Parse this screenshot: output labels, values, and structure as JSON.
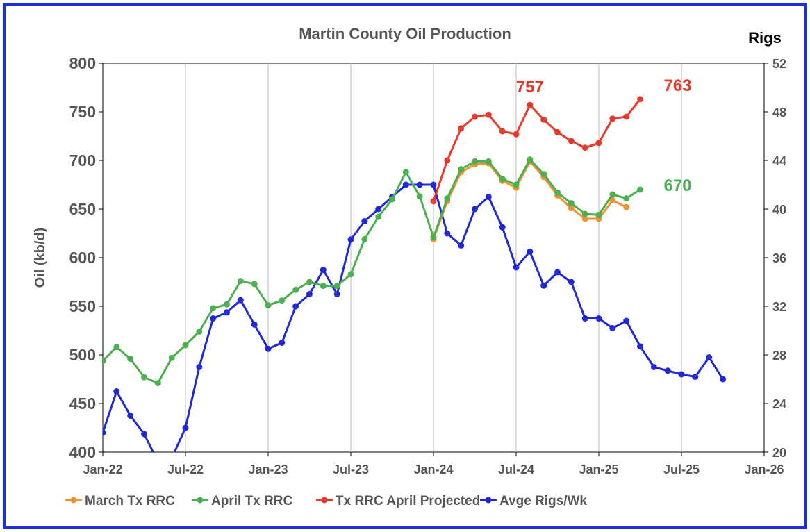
{
  "chart_data": {
    "type": "line",
    "title": "Martin County Oil Production",
    "ylabel": "Oil (kb/d)",
    "y2label": "Rigs",
    "ylim": [
      400,
      800
    ],
    "y2lim": [
      20,
      52
    ],
    "yticks": [
      400,
      450,
      500,
      550,
      600,
      650,
      700,
      750,
      800
    ],
    "y2ticks": [
      20,
      24,
      28,
      32,
      36,
      40,
      44,
      48,
      52
    ],
    "xlim": [
      "2022-01",
      "2026-01"
    ],
    "xticks": [
      {
        "date": "2022-01",
        "label": "Jan-22"
      },
      {
        "date": "2022-07",
        "label": "Jul-22"
      },
      {
        "date": "2023-01",
        "label": "Jan-23"
      },
      {
        "date": "2023-07",
        "label": "Jul-23"
      },
      {
        "date": "2024-01",
        "label": "Jan-24"
      },
      {
        "date": "2024-07",
        "label": "Jul-24"
      },
      {
        "date": "2025-01",
        "label": "Jan-25"
      },
      {
        "date": "2025-07",
        "label": "Jul-25"
      },
      {
        "date": "2026-01",
        "label": "Jan-26"
      }
    ],
    "grid": "vertical",
    "legend_position": "bottom",
    "series": [
      {
        "name": "March Tx RRC",
        "color": "#f0922f",
        "axis": "left",
        "x": [
          "2024-01",
          "2024-02",
          "2024-03",
          "2024-04",
          "2024-05",
          "2024-06",
          "2024-07",
          "2024-08",
          "2024-09",
          "2024-10",
          "2024-11",
          "2024-12",
          "2025-01",
          "2025-02",
          "2025-03"
        ],
        "values": [
          619,
          658,
          688,
          696,
          697,
          679,
          672,
          699,
          683,
          664,
          651,
          640,
          640,
          659,
          652
        ]
      },
      {
        "name": "April Tx RRC",
        "color": "#4caf50",
        "axis": "left",
        "x": [
          "2022-01",
          "2022-02",
          "2022-03",
          "2022-04",
          "2022-05",
          "2022-06",
          "2022-07",
          "2022-08",
          "2022-09",
          "2022-10",
          "2022-11",
          "2022-12",
          "2023-01",
          "2023-02",
          "2023-03",
          "2023-04",
          "2023-05",
          "2023-06",
          "2023-07",
          "2023-08",
          "2023-09",
          "2023-10",
          "2023-11",
          "2023-12",
          "2024-01",
          "2024-02",
          "2024-03",
          "2024-04",
          "2024-05",
          "2024-06",
          "2024-07",
          "2024-08",
          "2024-09",
          "2024-10",
          "2024-11",
          "2024-12",
          "2025-01",
          "2025-02",
          "2025-03",
          "2025-04"
        ],
        "values": [
          494,
          508,
          496,
          477,
          471,
          497,
          510,
          524,
          548,
          552,
          576,
          573,
          551,
          556,
          567,
          575,
          571,
          571,
          583,
          619,
          642,
          660,
          688,
          663,
          621,
          661,
          691,
          699,
          699,
          681,
          675,
          701,
          686,
          667,
          656,
          645,
          644,
          665,
          661,
          670
        ]
      },
      {
        "name": "Tx RRC April Projected",
        "color": "#e53a2c",
        "axis": "left",
        "x": [
          "2024-01",
          "2024-02",
          "2024-03",
          "2024-04",
          "2024-05",
          "2024-06",
          "2024-07",
          "2024-08",
          "2024-09",
          "2024-10",
          "2024-11",
          "2024-12",
          "2025-01",
          "2025-02",
          "2025-03",
          "2025-04"
        ],
        "values": [
          658,
          700,
          733,
          745,
          747,
          730,
          727,
          757,
          742,
          729,
          720,
          713,
          718,
          743,
          745,
          763
        ]
      },
      {
        "name": "Avge Rigs/Wk",
        "color": "#2029d8",
        "axis": "right",
        "x": [
          "2022-01",
          "2022-02",
          "2022-03",
          "2022-04",
          "2022-05",
          "2022-06",
          "2022-07",
          "2022-08",
          "2022-09",
          "2022-10",
          "2022-11",
          "2022-12",
          "2023-01",
          "2023-02",
          "2023-03",
          "2023-04",
          "2023-05",
          "2023-06",
          "2023-07",
          "2023-08",
          "2023-09",
          "2023-10",
          "2023-11",
          "2023-12",
          "2024-01",
          "2024-02",
          "2024-03",
          "2024-04",
          "2024-05",
          "2024-06",
          "2024-07",
          "2024-08",
          "2024-09",
          "2024-10",
          "2024-11",
          "2024-12",
          "2025-01",
          "2025-02",
          "2025-03",
          "2025-04",
          "2025-05",
          "2025-06",
          "2025-07",
          "2025-08",
          "2025-09",
          "2025-10"
        ],
        "values": [
          21.6,
          25.0,
          23.0,
          21.5,
          19.2,
          19.5,
          22.0,
          27.0,
          31.0,
          31.5,
          32.5,
          30.5,
          28.5,
          29.0,
          32.0,
          33.0,
          35.0,
          33.0,
          37.5,
          39.0,
          40.0,
          41.0,
          42.0,
          42.0,
          42.0,
          38.0,
          37.0,
          40.0,
          41.0,
          38.5,
          35.2,
          36.5,
          33.7,
          34.8,
          34.0,
          31.0,
          31.0,
          30.2,
          30.8,
          28.7,
          27.0,
          26.7,
          26.4,
          26.2,
          27.8,
          26.0
        ]
      }
    ],
    "annotations": [
      {
        "text": "757",
        "series": "Tx RRC April Projected",
        "color": "#e53a2c"
      },
      {
        "text": "763",
        "series": "Tx RRC April Projected",
        "color": "#e53a2c"
      },
      {
        "text": "670",
        "series": "April Tx RRC",
        "color": "#4caf50"
      }
    ]
  }
}
